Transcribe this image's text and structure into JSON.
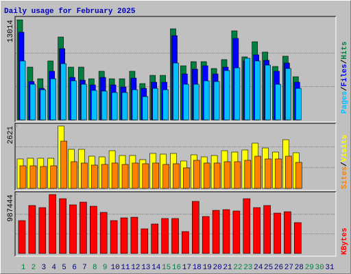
{
  "chart_data": [
    {
      "type": "bar",
      "title": "Daily usage for February 2025",
      "categories": [
        "1",
        "2",
        "3",
        "4",
        "5",
        "6",
        "7",
        "8",
        "9",
        "10",
        "11",
        "12",
        "13",
        "14",
        "15",
        "16",
        "17",
        "18",
        "19",
        "20",
        "21",
        "22",
        "23",
        "24",
        "25",
        "26",
        "27",
        "28",
        "29",
        "30",
        "31"
      ],
      "category_colors": [
        "#008040",
        "#008040",
        "#000080",
        "#000080",
        "#000080",
        "#000080",
        "#000080",
        "#008040",
        "#008040",
        "#000080",
        "#000080",
        "#000080",
        "#000080",
        "#000080",
        "#008040",
        "#008040",
        "#000080",
        "#000080",
        "#000080",
        "#000080",
        "#000080",
        "#008040",
        "#008040",
        "#000080",
        "#000080",
        "#000080",
        "#000080",
        "#000080",
        "#008040",
        "#008040",
        "#000080"
      ],
      "legend_separator": "/",
      "ylim": [
        0,
        13014
      ],
      "yticks": [
        13014
      ],
      "series": [
        {
          "name": "Hits",
          "color": "#008040",
          "values": [
            13014,
            6864,
            5348,
            7666,
            10786,
            6864,
            6864,
            5348,
            6329,
            5348,
            5348,
            6329,
            4724,
            5794,
            5794,
            11855,
            7042,
            7577,
            7577,
            6685,
            7844,
            11588,
            8200,
            10162,
            8825,
            6953,
            8290,
            5616,
            null,
            null,
            null
          ]
        },
        {
          "name": "Files",
          "color": "#0000FF",
          "values": [
            11410,
            4992,
            4100,
            6329,
            9270,
            5527,
            5170,
            4546,
            5527,
            4546,
            4279,
            5437,
            4100,
            4902,
            4902,
            10964,
            5972,
            6596,
            7042,
            5972,
            6864,
            10607,
            7666,
            8468,
            7755,
            6329,
            7398,
            4902,
            null,
            null,
            null
          ]
        },
        {
          "name": "Pages",
          "color": "#00C0FF",
          "values": [
            7666,
            4635,
            3922,
            5348,
            7310,
            5081,
            4635,
            3833,
            3744,
            3566,
            3566,
            3922,
            3031,
            4100,
            3922,
            7398,
            4635,
            4635,
            5081,
            4992,
            6418,
            6774,
            8022,
            7666,
            7131,
            4635,
            6685,
            4100,
            null,
            null,
            null
          ]
        }
      ]
    },
    {
      "type": "bar",
      "ylim": [
        0,
        2621
      ],
      "yticks": [
        2621
      ],
      "legend_separator": "/",
      "series": [
        {
          "name": "Visits",
          "color": "#FFFF00",
          "values": [
            1239,
            1267,
            1267,
            1267,
            2621,
            1642,
            1642,
            1354,
            1325,
            1584,
            1383,
            1383,
            1210,
            1469,
            1440,
            1469,
            1152,
            1411,
            1325,
            1383,
            1584,
            1527,
            1613,
            1901,
            1699,
            1527,
            2045,
            1498,
            null,
            null,
            null
          ]
        },
        {
          "name": "Sites",
          "color": "#FF8000",
          "values": [
            950,
            950,
            922,
            950,
            1987,
            1123,
            1066,
            979,
            1008,
            1066,
            1008,
            1066,
            1037,
            1066,
            1008,
            1037,
            864,
            1181,
            1066,
            1066,
            1123,
            1123,
            1181,
            1354,
            1239,
            1239,
            1354,
            1094,
            null,
            null,
            null
          ]
        }
      ]
    },
    {
      "type": "bar",
      "ylim": [
        0,
        987444
      ],
      "yticks": [
        987444
      ],
      "series": [
        {
          "name": "KBytes",
          "color": "#FF0000",
          "values": [
            551000,
            804000,
            769000,
            987444,
            918000,
            815000,
            861000,
            792000,
            689000,
            551000,
            597000,
            608000,
            413000,
            494000,
            586000,
            586000,
            367000,
            873000,
            620000,
            723000,
            735000,
            712000,
            918000,
            769000,
            804000,
            677000,
            700000,
            517000,
            null,
            null,
            null
          ]
        }
      ]
    }
  ]
}
